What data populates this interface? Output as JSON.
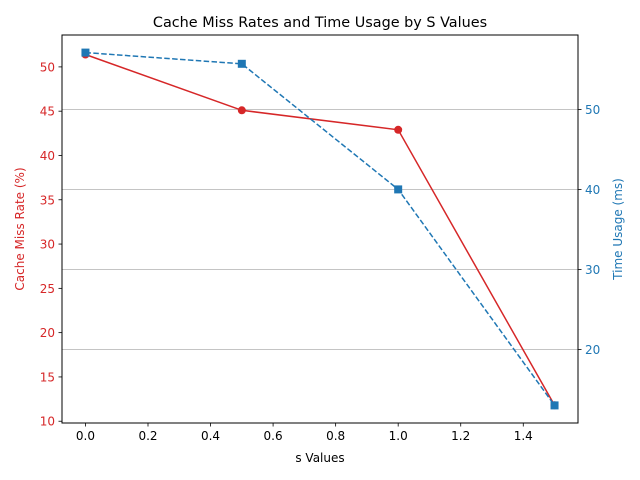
{
  "chart_data": {
    "type": "line",
    "title": "Cache Miss Rates and Time Usage by S Values",
    "xlabel": "s Values",
    "x": [
      0.0,
      0.5,
      1.0,
      1.5
    ],
    "xlim": [
      -0.075,
      1.575
    ],
    "xticks": [
      0.0,
      0.2,
      0.4,
      0.6,
      0.8,
      1.0,
      1.2,
      1.4
    ],
    "xtick_labels": [
      "0.0",
      "0.2",
      "0.4",
      "0.6",
      "0.8",
      "1.0",
      "1.2",
      "1.4"
    ],
    "y_left": {
      "label": "Cache Miss Rate (%)",
      "color": "#d62728",
      "lim": [
        9.8,
        53.6
      ],
      "ticks": [
        10,
        15,
        20,
        25,
        30,
        35,
        40,
        45,
        50
      ],
      "tick_labels": [
        "10",
        "15",
        "20",
        "25",
        "30",
        "35",
        "40",
        "45",
        "50"
      ]
    },
    "y_right": {
      "label": "Time Usage (ms)",
      "color": "#1f77b4",
      "lim": [
        10.8,
        59.3
      ],
      "ticks": [
        20,
        30,
        40,
        50
      ],
      "tick_labels": [
        "20",
        "30",
        "40",
        "50"
      ],
      "grid": true
    },
    "series": [
      {
        "axis": "left",
        "values": [
          51.4,
          45.1,
          42.9,
          11.8
        ],
        "color": "#d62728",
        "linestyle": "solid",
        "marker": "circle"
      },
      {
        "axis": "right",
        "values": [
          57.1,
          55.7,
          40.0,
          13.0
        ],
        "color": "#1f77b4",
        "linestyle": "dashed",
        "marker": "square"
      }
    ]
  }
}
